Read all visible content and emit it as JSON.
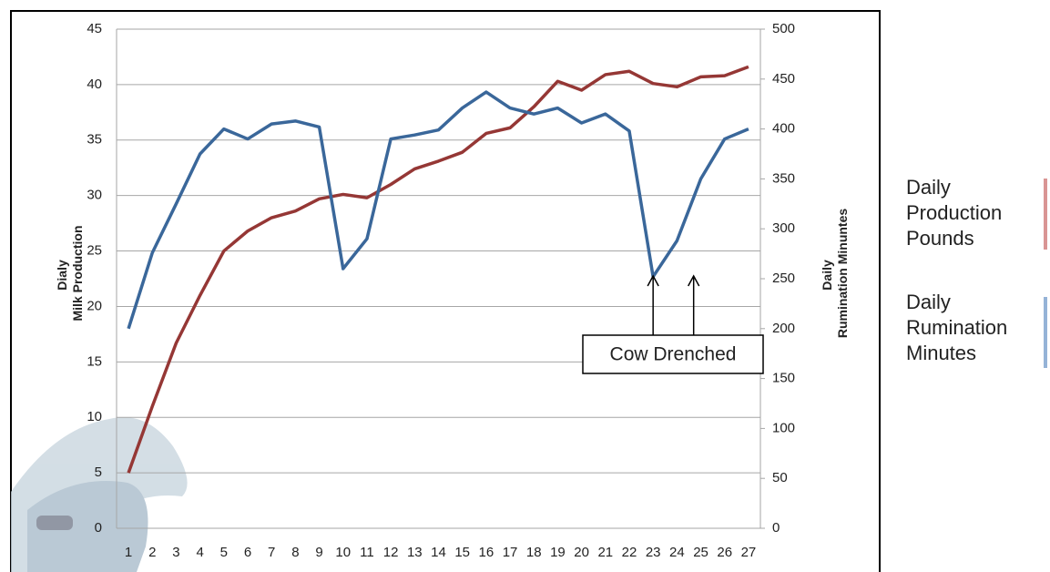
{
  "chart_data": {
    "type": "line",
    "categories": [
      "1",
      "2",
      "3",
      "4",
      "5",
      "6",
      "7",
      "8",
      "9",
      "10",
      "11",
      "12",
      "13",
      "14",
      "15",
      "16",
      "17",
      "18",
      "19",
      "20",
      "21",
      "22",
      "23",
      "24",
      "25",
      "26",
      "27"
    ],
    "series": [
      {
        "name": "Daily Production Pounds",
        "color": "#953735",
        "legend_color": "#d99594",
        "axis": "y",
        "values": [
          5,
          11,
          16.7,
          21,
          25,
          26.8,
          28,
          28.6,
          29.7,
          30.1,
          29.8,
          31,
          32.4,
          33.1,
          33.9,
          35.6,
          36.1,
          38,
          40.3,
          39.5,
          40.9,
          41.2,
          40.1,
          39.8,
          40.7,
          40.8,
          41.6
        ]
      },
      {
        "name": "Daily Rumination Minutes",
        "color": "#3a679a",
        "legend_color": "#95b3d7",
        "axis": "y2",
        "values": [
          200,
          276,
          325,
          375,
          400,
          390,
          405,
          408,
          402,
          260,
          290,
          390,
          394,
          399,
          421,
          437,
          421,
          415,
          421,
          406,
          415,
          398,
          252,
          288,
          350,
          390,
          400
        ]
      }
    ],
    "ylabel": [
      "Dialy",
      "Milk Production"
    ],
    "y2label": [
      "Daily",
      "Rumination Minuntes"
    ],
    "ylim": [
      0,
      45
    ],
    "yticks": [
      0,
      5,
      10,
      15,
      20,
      25,
      30,
      35,
      40,
      45
    ],
    "y2lim": [
      0,
      500
    ],
    "y2ticks": [
      0,
      50,
      100,
      150,
      200,
      250,
      300,
      350,
      400,
      450,
      500
    ],
    "grid": true,
    "annotation": {
      "text": "Cow Drenched",
      "arrows_at": [
        23,
        24.7
      ]
    }
  }
}
